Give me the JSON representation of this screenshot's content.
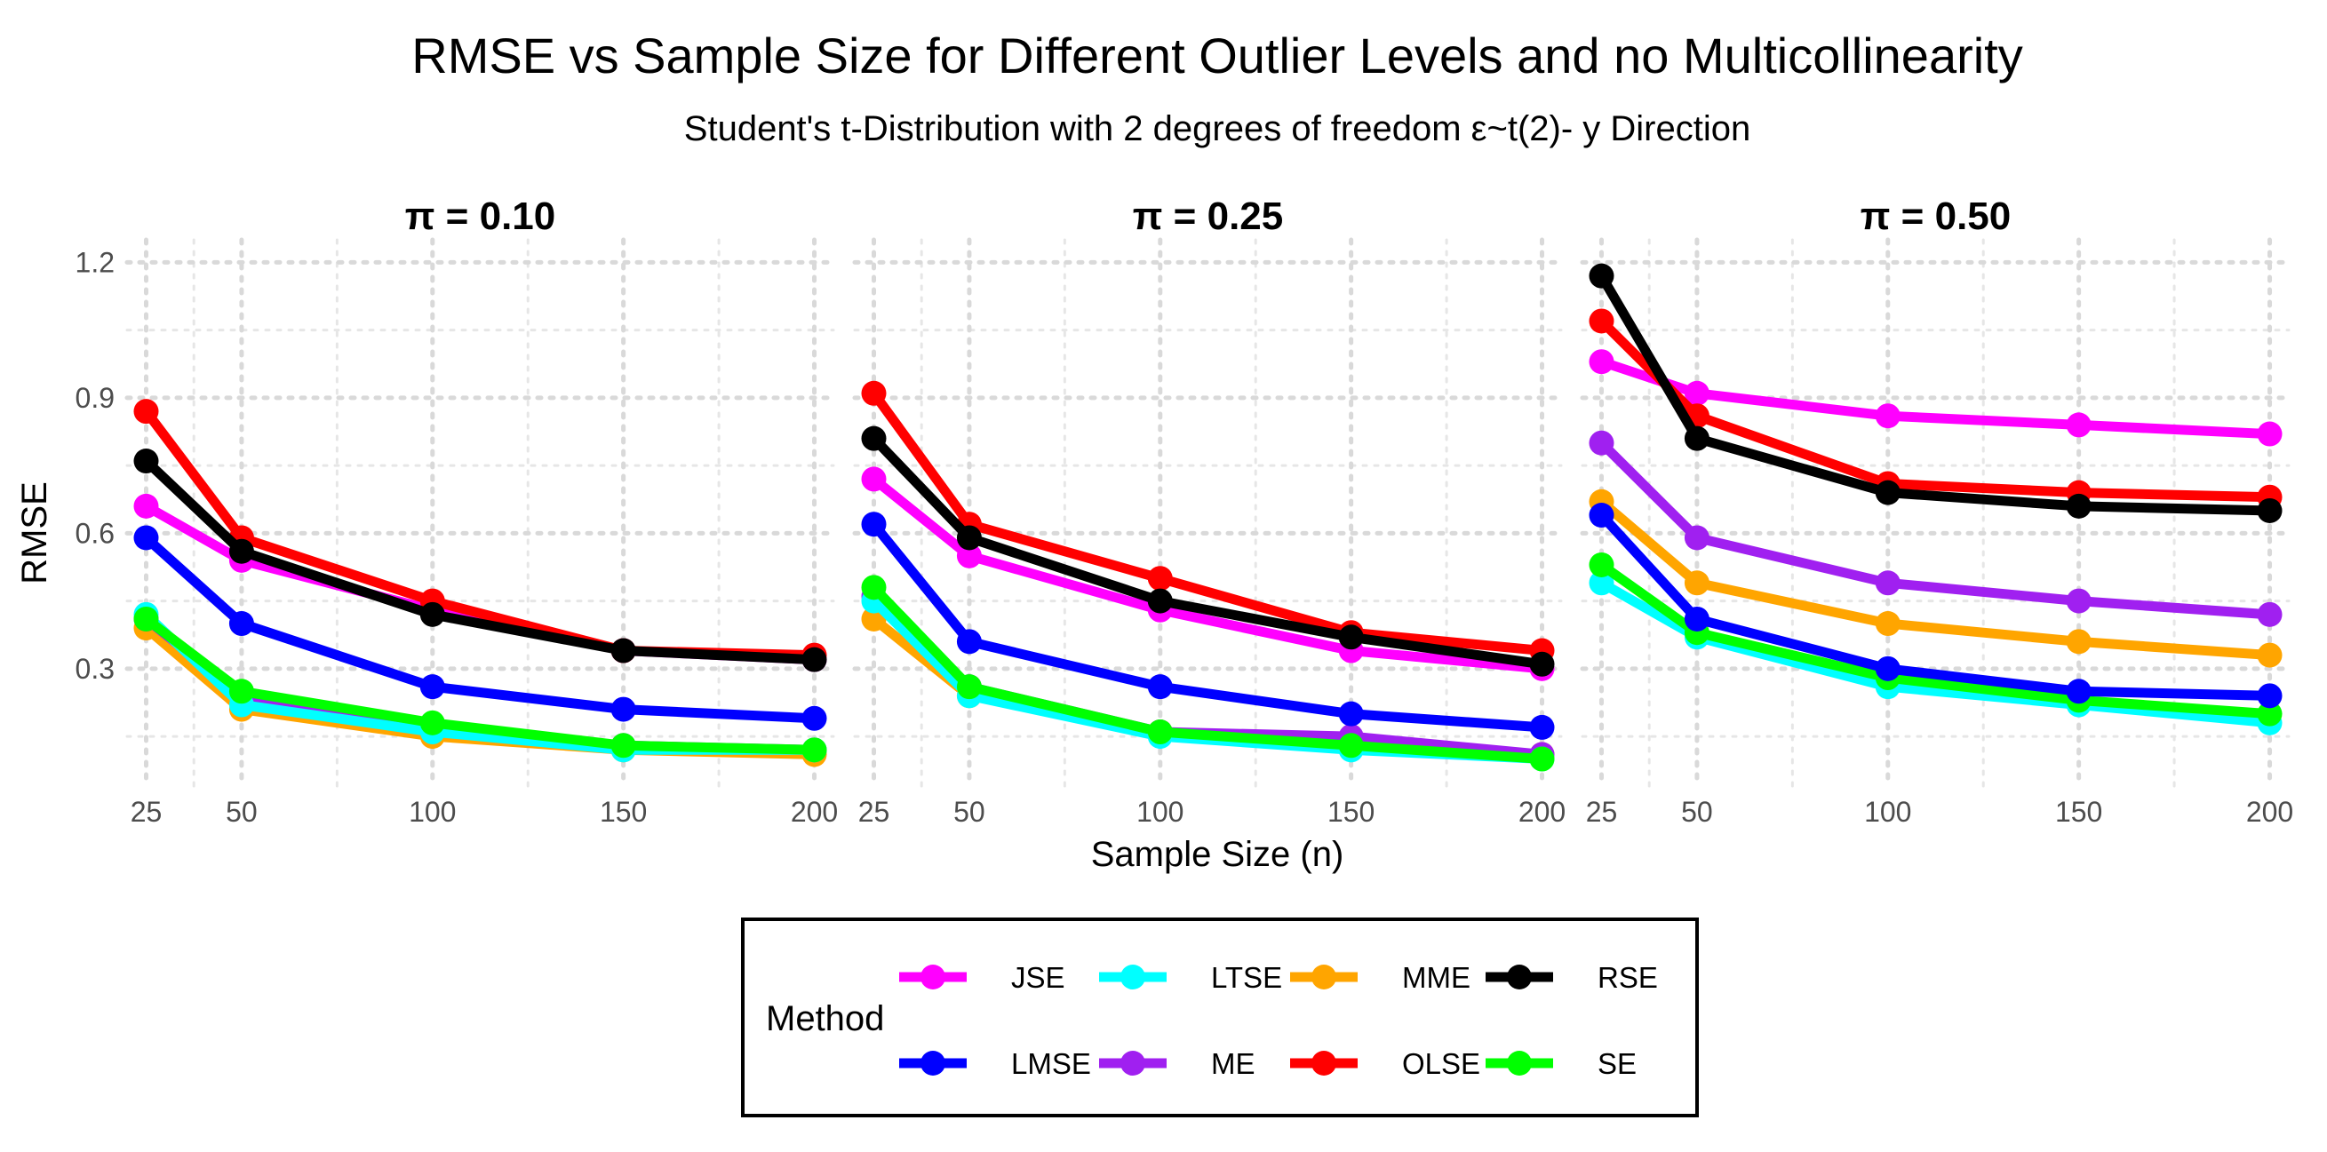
{
  "chart_data": {
    "type": "line",
    "title": "RMSE vs Sample Size for Different Outlier Levels and no Multicollinearity",
    "subtitle": "Student's t-Distribution with 2 degrees of freedom ε~t(2)- y Direction",
    "xlabel": "Sample Size (n)",
    "ylabel": "RMSE",
    "x": [
      25,
      50,
      100,
      150,
      200
    ],
    "x_ticks": [
      "25",
      "50",
      "100",
      "150",
      "200"
    ],
    "xlim": [
      20,
      205
    ],
    "ylim": [
      0.04,
      1.25
    ],
    "y_ticks": [
      "1.2",
      "0.9",
      "0.6",
      "0.3"
    ],
    "y_tick_values": [
      1.2,
      0.9,
      0.6,
      0.3
    ],
    "legend": {
      "title": "Method",
      "position": "bottom"
    },
    "methods": [
      {
        "name": "JSE",
        "color": "#FF00FF"
      },
      {
        "name": "LTSE",
        "color": "#00FFFF"
      },
      {
        "name": "MME",
        "color": "#FFA500"
      },
      {
        "name": "RSE",
        "color": "#000000"
      },
      {
        "name": "LMSE",
        "color": "#0000FF"
      },
      {
        "name": "ME",
        "color": "#A020F0"
      },
      {
        "name": "OLSE",
        "color": "#FF0000"
      },
      {
        "name": "SE",
        "color": "#00FF00"
      }
    ],
    "draw_order": [
      "MME",
      "ME",
      "LTSE",
      "SE",
      "LMSE",
      "JSE",
      "OLSE",
      "RSE"
    ],
    "facets": [
      {
        "label": "π = 0.10",
        "series": {
          "JSE": [
            0.66,
            0.54,
            0.43,
            0.34,
            0.32
          ],
          "LTSE": [
            0.42,
            0.22,
            0.16,
            0.12,
            0.12
          ],
          "MME": [
            0.39,
            0.21,
            0.15,
            0.12,
            0.11
          ],
          "RSE": [
            0.76,
            0.56,
            0.42,
            0.34,
            0.32
          ],
          "LMSE": [
            0.59,
            0.4,
            0.26,
            0.21,
            0.19
          ],
          "ME": [
            0.41,
            0.24,
            0.17,
            0.13,
            0.12
          ],
          "OLSE": [
            0.87,
            0.59,
            0.45,
            0.34,
            0.33
          ],
          "SE": [
            0.41,
            0.25,
            0.18,
            0.13,
            0.12
          ]
        }
      },
      {
        "label": "π = 0.25",
        "series": {
          "JSE": [
            0.72,
            0.55,
            0.43,
            0.34,
            0.3
          ],
          "LTSE": [
            0.45,
            0.24,
            0.15,
            0.12,
            0.1
          ],
          "MME": [
            0.41,
            0.24,
            0.16,
            0.13,
            0.11
          ],
          "RSE": [
            0.81,
            0.59,
            0.45,
            0.37,
            0.31
          ],
          "LMSE": [
            0.62,
            0.36,
            0.26,
            0.2,
            0.17
          ],
          "ME": [
            0.46,
            0.26,
            0.16,
            0.15,
            0.11
          ],
          "OLSE": [
            0.91,
            0.62,
            0.5,
            0.38,
            0.34
          ],
          "SE": [
            0.48,
            0.26,
            0.16,
            0.13,
            0.1
          ]
        }
      },
      {
        "label": "π = 0.50",
        "series": {
          "JSE": [
            0.98,
            0.91,
            0.86,
            0.84,
            0.82
          ],
          "LTSE": [
            0.49,
            0.37,
            0.26,
            0.22,
            0.18
          ],
          "MME": [
            0.67,
            0.49,
            0.4,
            0.36,
            0.33
          ],
          "RSE": [
            1.17,
            0.81,
            0.69,
            0.66,
            0.65
          ],
          "LMSE": [
            0.64,
            0.41,
            0.3,
            0.25,
            0.24
          ],
          "ME": [
            0.8,
            0.59,
            0.49,
            0.45,
            0.42
          ],
          "OLSE": [
            1.07,
            0.86,
            0.71,
            0.69,
            0.68
          ],
          "SE": [
            0.53,
            0.38,
            0.28,
            0.23,
            0.2
          ]
        }
      }
    ]
  }
}
